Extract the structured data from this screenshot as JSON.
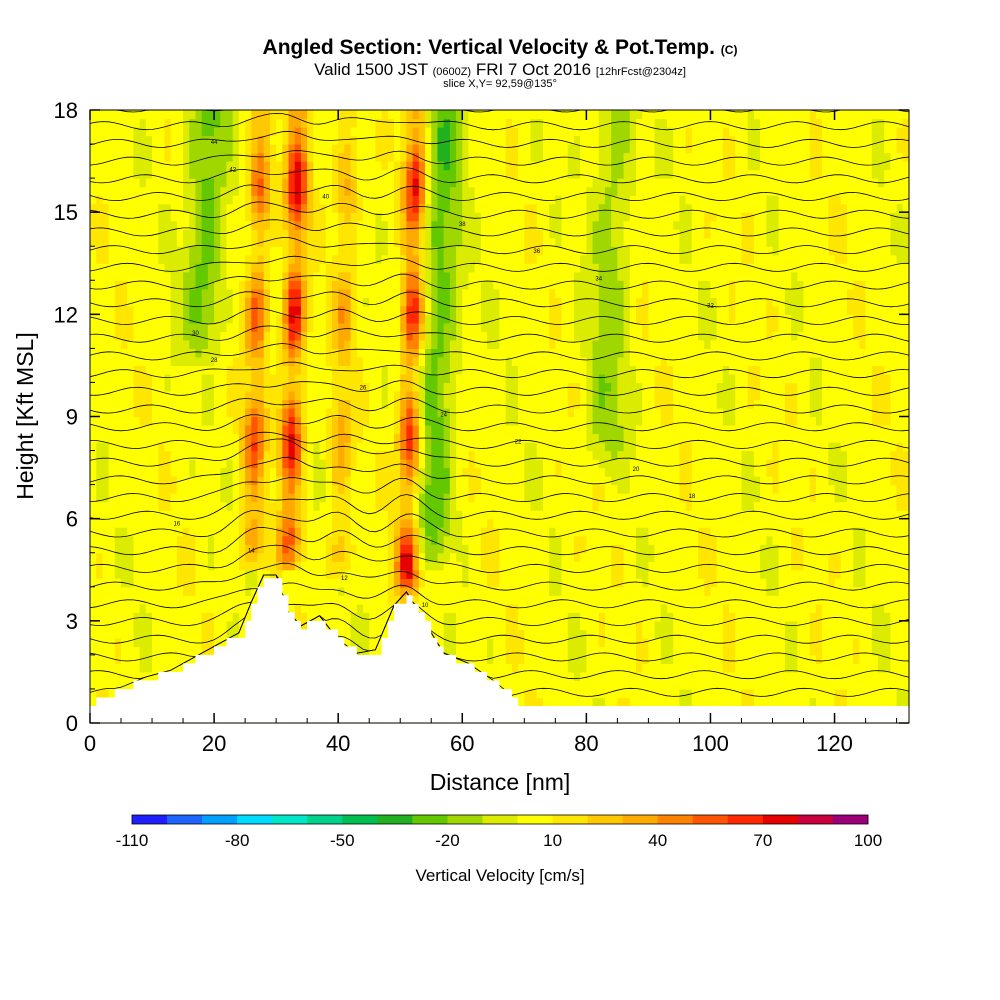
{
  "header": {
    "title": "Angled Section: Vertical Velocity & Pot.Temp.",
    "title_suffix": "(C)",
    "valid_prefix": "Valid 1500 JST",
    "valid_zulu": "(0600Z)",
    "valid_date": "FRI 7 Oct 2016",
    "forecast": "[12hrFcst@2304z]",
    "slice": "slice X,Y= 92,59@135°"
  },
  "chart_data": {
    "type": "heatmap",
    "xlabel": "Distance [nm]",
    "ylabel": "Height [Kft MSL]",
    "xlim": [
      0,
      132
    ],
    "ylim": [
      0,
      18
    ],
    "x_ticks": [
      0,
      20,
      40,
      60,
      80,
      100,
      120
    ],
    "y_ticks": [
      0,
      3,
      6,
      9,
      12,
      15,
      18
    ],
    "colorbar": {
      "label": "Vertical Velocity [cm/s]",
      "tick_labels": [
        "-110",
        "-80",
        "-50",
        "-20",
        "10",
        "40",
        "70",
        "100"
      ],
      "bins": [
        -110,
        -100,
        -90,
        -80,
        -70,
        -60,
        -50,
        -40,
        -30,
        -20,
        -10,
        0,
        10,
        20,
        30,
        40,
        50,
        60,
        70,
        80,
        90,
        100
      ],
      "colors": [
        "#1e1eff",
        "#1e64ff",
        "#00a0ff",
        "#00dcff",
        "#00e6c8",
        "#00d28c",
        "#00be50",
        "#20b020",
        "#64c800",
        "#a0d700",
        "#dcec00",
        "#ffff00",
        "#ffe600",
        "#ffc800",
        "#ffaa00",
        "#ff8200",
        "#ff5500",
        "#ff2800",
        "#e60000",
        "#c8003c",
        "#9b0078"
      ]
    },
    "updraft_bands": [
      {
        "x_center": 32,
        "z_base": 4.5,
        "peak_cms": 70
      },
      {
        "x_center": 26,
        "z_base": 4.5,
        "peak_cms": 50
      },
      {
        "x_center": 51,
        "z_base": 3.5,
        "peak_cms": 70
      },
      {
        "x_center": 40,
        "z_base": 4.0,
        "peak_cms": 30
      }
    ],
    "downdraft_bands": [
      {
        "x_center": 18,
        "z_base": 10.5,
        "peak_cms": -30
      },
      {
        "x_center": 55,
        "z_base": 4.5,
        "peak_cms": -30
      },
      {
        "x_center": 83,
        "z_base": 7.0,
        "peak_cms": -20
      }
    ],
    "terrain_kft": [
      [
        0,
        0.6
      ],
      [
        5,
        1.0
      ],
      [
        9,
        1.3
      ],
      [
        13,
        1.5
      ],
      [
        17,
        1.9
      ],
      [
        20,
        2.2
      ],
      [
        24,
        2.6
      ],
      [
        26,
        3.5
      ],
      [
        28,
        4.3
      ],
      [
        30,
        4.3
      ],
      [
        32,
        3.2
      ],
      [
        34,
        2.8
      ],
      [
        37,
        3.1
      ],
      [
        40,
        2.4
      ],
      [
        43,
        2.0
      ],
      [
        46,
        2.1
      ],
      [
        49,
        3.4
      ],
      [
        51,
        3.8
      ],
      [
        53,
        3.2
      ],
      [
        57,
        2.0
      ],
      [
        61,
        1.7
      ],
      [
        65,
        1.2
      ],
      [
        69,
        0.6
      ],
      [
        72,
        0.4
      ],
      [
        132,
        0.4
      ]
    ],
    "theta_contour_labels": [
      "44",
      "42",
      "40",
      "38",
      "36",
      "34",
      "32",
      "30",
      "28",
      "26",
      "24",
      "22",
      "20",
      "18",
      "16",
      "14",
      "12",
      "10"
    ],
    "grid": false
  }
}
